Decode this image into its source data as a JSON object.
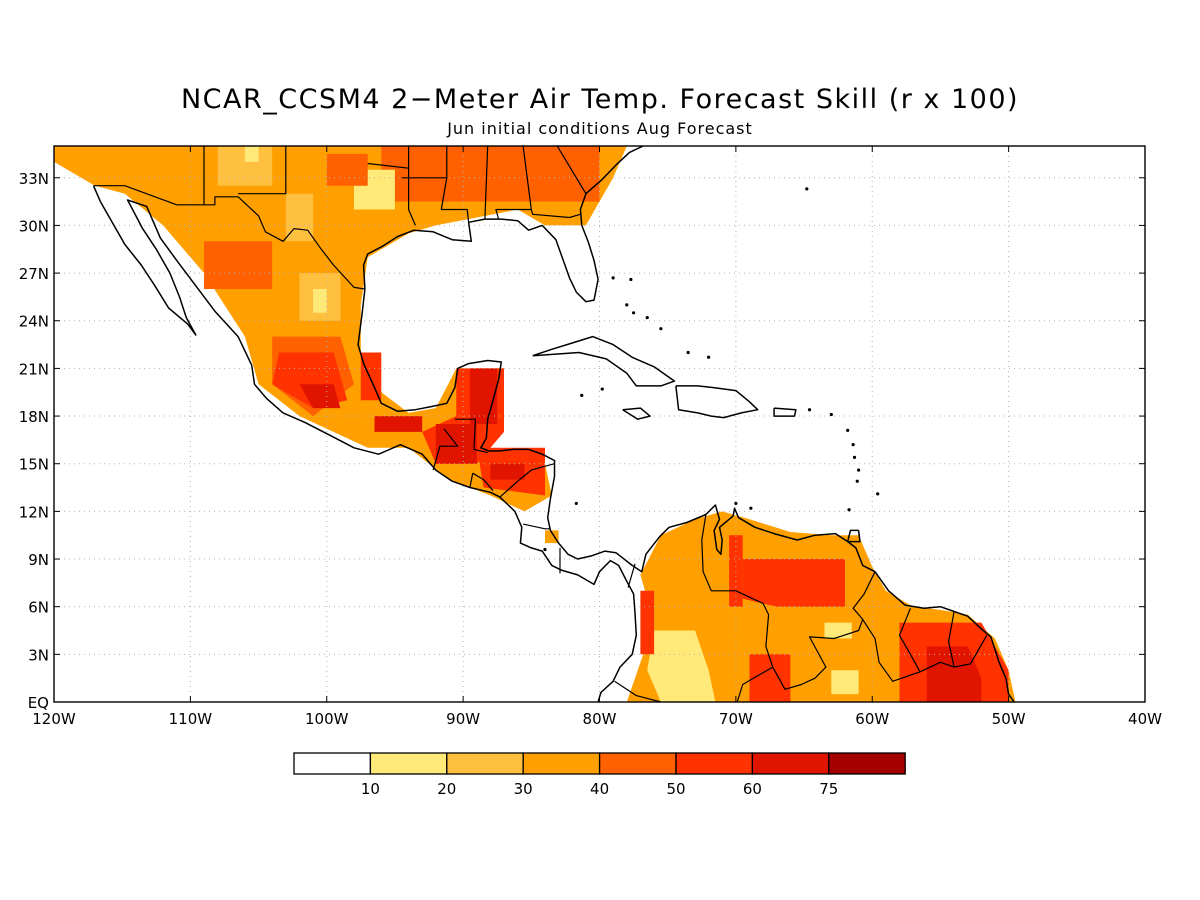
{
  "title": "NCAR_CCSM4 2−Meter Air Temp. Forecast Skill (r x 100)",
  "subtitle": "Jun initial conditions  Aug Forecast",
  "map": {
    "lon_range": [
      -120,
      -40
    ],
    "lat_range": [
      0,
      35
    ],
    "grid": "dotted",
    "lon_ticks": [
      {
        "value": -120,
        "label": "120W"
      },
      {
        "value": -110,
        "label": "110W"
      },
      {
        "value": -100,
        "label": "100W"
      },
      {
        "value": -90,
        "label": "90W"
      },
      {
        "value": -80,
        "label": "80W"
      },
      {
        "value": -70,
        "label": "70W"
      },
      {
        "value": -60,
        "label": "60W"
      },
      {
        "value": -50,
        "label": "50W"
      },
      {
        "value": -40,
        "label": "40W"
      }
    ],
    "lat_ticks": [
      {
        "value": 0,
        "label": "EQ"
      },
      {
        "value": 3,
        "label": "3N"
      },
      {
        "value": 6,
        "label": "6N"
      },
      {
        "value": 9,
        "label": "9N"
      },
      {
        "value": 12,
        "label": "12N"
      },
      {
        "value": 15,
        "label": "15N"
      },
      {
        "value": 18,
        "label": "18N"
      },
      {
        "value": 21,
        "label": "21N"
      },
      {
        "value": 24,
        "label": "24N"
      },
      {
        "value": 27,
        "label": "27N"
      },
      {
        "value": 30,
        "label": "30N"
      },
      {
        "value": 33,
        "label": "33N"
      }
    ],
    "skill_regions": [
      {
        "level": 30,
        "points": [
          [
            -120,
            35
          ],
          [
            -78,
            35
          ],
          [
            -79,
            33
          ],
          [
            -81,
            30
          ],
          [
            -84,
            30
          ],
          [
            -86,
            31
          ],
          [
            -89,
            30.5
          ],
          [
            -92,
            30
          ],
          [
            -94,
            29.5
          ],
          [
            -97,
            28
          ],
          [
            -97.5,
            25
          ],
          [
            -97.5,
            22
          ],
          [
            -96,
            19.5
          ],
          [
            -94,
            18.2
          ],
          [
            -92,
            18.5
          ],
          [
            -90.5,
            21
          ],
          [
            -87,
            21
          ],
          [
            -87.5,
            18
          ],
          [
            -88,
            16
          ],
          [
            -84,
            15
          ],
          [
            -83.5,
            13
          ],
          [
            -85.5,
            12
          ],
          [
            -88,
            13
          ],
          [
            -91,
            14
          ],
          [
            -94,
            16
          ],
          [
            -97,
            16
          ],
          [
            -102,
            18
          ],
          [
            -105,
            20
          ],
          [
            -106,
            23
          ],
          [
            -109,
            27
          ],
          [
            -112,
            30
          ],
          [
            -114.8,
            32
          ],
          [
            -117,
            32.5
          ],
          [
            -120,
            34
          ]
        ]
      },
      {
        "level": 40,
        "points": [
          [
            -96,
            31.5
          ],
          [
            -80,
            31.5
          ],
          [
            -80,
            35
          ],
          [
            -96,
            35
          ]
        ]
      },
      {
        "level": 20,
        "points": [
          [
            -108,
            35
          ],
          [
            -104,
            35
          ],
          [
            -104,
            32.5
          ],
          [
            -108,
            32.5
          ]
        ]
      },
      {
        "level": 10,
        "points": [
          [
            -106,
            35
          ],
          [
            -105,
            35
          ],
          [
            -105,
            34
          ],
          [
            -106,
            34
          ]
        ]
      },
      {
        "level": 40,
        "points": [
          [
            -109,
            29
          ],
          [
            -104,
            29
          ],
          [
            -104,
            26
          ],
          [
            -109,
            26
          ]
        ]
      },
      {
        "level": 20,
        "points": [
          [
            -103,
            32
          ],
          [
            -101,
            32
          ],
          [
            -101,
            29
          ],
          [
            -103,
            29
          ]
        ]
      },
      {
        "level": 10,
        "points": [
          [
            -98,
            33.5
          ],
          [
            -95,
            33.5
          ],
          [
            -95,
            31
          ],
          [
            -98,
            31
          ]
        ]
      },
      {
        "level": 40,
        "points": [
          [
            -100,
            34.5
          ],
          [
            -97,
            34.5
          ],
          [
            -97,
            32.5
          ],
          [
            -100,
            32.5
          ]
        ]
      },
      {
        "level": 20,
        "points": [
          [
            -102,
            27
          ],
          [
            -99,
            27
          ],
          [
            -99,
            24
          ],
          [
            -102,
            24
          ]
        ]
      },
      {
        "level": 10,
        "points": [
          [
            -101,
            26
          ],
          [
            -100,
            26
          ],
          [
            -100,
            24.5
          ],
          [
            -101,
            24.5
          ]
        ]
      },
      {
        "level": 40,
        "points": [
          [
            -104,
            23
          ],
          [
            -99,
            23
          ],
          [
            -98,
            20
          ],
          [
            -101,
            18
          ],
          [
            -104,
            20
          ]
        ]
      },
      {
        "level": 50,
        "points": [
          [
            -103.5,
            22
          ],
          [
            -99.5,
            22
          ],
          [
            -98.5,
            19
          ],
          [
            -101,
            18.5
          ],
          [
            -104,
            20
          ]
        ]
      },
      {
        "level": 60,
        "points": [
          [
            -102,
            20
          ],
          [
            -99.5,
            20
          ],
          [
            -99,
            18.5
          ],
          [
            -101,
            18.5
          ]
        ]
      },
      {
        "level": 50,
        "points": [
          [
            -97.5,
            22
          ],
          [
            -96,
            22
          ],
          [
            -96,
            19
          ],
          [
            -97.5,
            19
          ]
        ]
      },
      {
        "level": 60,
        "points": [
          [
            -96.5,
            18
          ],
          [
            -93,
            18
          ],
          [
            -93,
            17
          ],
          [
            -96.5,
            17
          ]
        ]
      },
      {
        "level": 50,
        "points": [
          [
            -90.5,
            21
          ],
          [
            -87,
            21
          ],
          [
            -87,
            17
          ],
          [
            -89,
            15
          ],
          [
            -92,
            15
          ],
          [
            -93,
            17
          ],
          [
            -90.5,
            18
          ]
        ]
      },
      {
        "level": 60,
        "points": [
          [
            -89.5,
            21
          ],
          [
            -87.5,
            21
          ],
          [
            -87.5,
            17.5
          ],
          [
            -89.5,
            17.5
          ]
        ]
      },
      {
        "level": 60,
        "points": [
          [
            -92,
            17.5
          ],
          [
            -89,
            17.5
          ],
          [
            -89,
            15
          ],
          [
            -92,
            15
          ]
        ]
      },
      {
        "level": 50,
        "points": [
          [
            -89,
            16
          ],
          [
            -84,
            16
          ],
          [
            -84,
            13
          ],
          [
            -88.5,
            13.5
          ]
        ]
      },
      {
        "level": 60,
        "points": [
          [
            -88,
            15
          ],
          [
            -85.5,
            15
          ],
          [
            -85.5,
            14
          ],
          [
            -88,
            14
          ]
        ]
      },
      {
        "level": 30,
        "points": [
          [
            -84,
            10.8
          ],
          [
            -83,
            10.8
          ],
          [
            -83,
            10
          ],
          [
            -84,
            10
          ]
        ]
      },
      {
        "level": 30,
        "points": [
          [
            -78,
            0
          ],
          [
            -76,
            5
          ],
          [
            -77,
            8
          ],
          [
            -75.5,
            10.5
          ],
          [
            -73,
            11.5
          ],
          [
            -71,
            12
          ],
          [
            -69,
            11.5
          ],
          [
            -66,
            10.7
          ],
          [
            -63,
            10.5
          ],
          [
            -61,
            10.5
          ],
          [
            -60,
            8.5
          ],
          [
            -59,
            7
          ],
          [
            -57,
            6
          ],
          [
            -55,
            5.8
          ],
          [
            -53,
            5.5
          ],
          [
            -51,
            4
          ],
          [
            -50,
            2
          ],
          [
            -49.5,
            0
          ]
        ]
      },
      {
        "level": 10,
        "points": [
          [
            -76,
            4.5
          ],
          [
            -73,
            4.5
          ],
          [
            -72,
            2
          ],
          [
            -71.5,
            0
          ],
          [
            -75.5,
            0
          ],
          [
            -76.5,
            2
          ]
        ]
      },
      {
        "level": 10,
        "points": [
          [
            -63,
            2
          ],
          [
            -61,
            2
          ],
          [
            -61,
            0.5
          ],
          [
            -63,
            0.5
          ]
        ]
      },
      {
        "level": 10,
        "points": [
          [
            -63.5,
            5
          ],
          [
            -61.5,
            5
          ],
          [
            -61.5,
            4
          ],
          [
            -63.5,
            4
          ]
        ]
      },
      {
        "level": 50,
        "points": [
          [
            -77,
            7
          ],
          [
            -76,
            7
          ],
          [
            -76,
            3
          ],
          [
            -77,
            3
          ]
        ]
      },
      {
        "level": 50,
        "points": [
          [
            -70.5,
            10.5
          ],
          [
            -69.5,
            10.5
          ],
          [
            -69.5,
            6
          ],
          [
            -70.5,
            6
          ]
        ]
      },
      {
        "level": 50,
        "points": [
          [
            -69.5,
            9
          ],
          [
            -62,
            9
          ],
          [
            -62,
            6
          ],
          [
            -67,
            6
          ],
          [
            -69.5,
            6.5
          ]
        ]
      },
      {
        "level": 50,
        "points": [
          [
            -58,
            5
          ],
          [
            -52,
            5
          ],
          [
            -50,
            2
          ],
          [
            -50,
            0
          ],
          [
            -58,
            0
          ]
        ]
      },
      {
        "level": 60,
        "points": [
          [
            -56,
            3.5
          ],
          [
            -53,
            3.5
          ],
          [
            -52,
            1.5
          ],
          [
            -52,
            0
          ],
          [
            -56,
            0
          ]
        ]
      },
      {
        "level": 50,
        "points": [
          [
            -69,
            3
          ],
          [
            -66,
            3
          ],
          [
            -66,
            0
          ],
          [
            -69,
            0
          ]
        ]
      }
    ]
  },
  "colorbar": {
    "labels": [
      "10",
      "20",
      "30",
      "40",
      "50",
      "60",
      "75"
    ],
    "colors": [
      "#ffffff",
      "#ffe978",
      "#ffc040",
      "#ffa000",
      "#ff6000",
      "#ff3200",
      "#e11400",
      "#a50000"
    ]
  }
}
